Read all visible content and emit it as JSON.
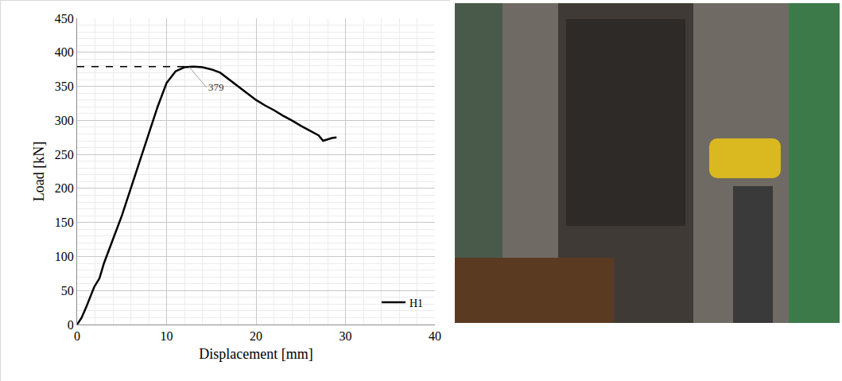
{
  "chart_data": {
    "type": "line",
    "x_label": "Displacement [mm]",
    "y_label": "Load [kN]",
    "xlim": [
      0,
      40
    ],
    "xticks": [
      0,
      10,
      20,
      30,
      40
    ],
    "ylim": [
      0,
      450
    ],
    "yticks": [
      0,
      50,
      100,
      150,
      200,
      250,
      300,
      350,
      400,
      450
    ],
    "grid": true,
    "legend": "lower right",
    "series": [
      {
        "name": "H1",
        "color": "#000000",
        "line_style": "solid",
        "x": [
          0,
          0.5,
          1,
          1.9,
          2.5,
          3,
          4,
          5,
          6,
          7,
          8,
          9,
          10,
          11,
          12,
          13,
          14,
          15,
          16,
          17,
          18,
          19,
          20,
          21,
          22,
          23,
          24,
          25,
          26,
          27,
          27.5,
          28,
          28.5,
          29
        ],
        "values": [
          0,
          10,
          25,
          55,
          68,
          90,
          125,
          160,
          200,
          240,
          280,
          320,
          355,
          372,
          378,
          379,
          378,
          375,
          370,
          360,
          350,
          340,
          330,
          322,
          315,
          307,
          300,
          292,
          285,
          278,
          270,
          272,
          274,
          275
        ]
      }
    ],
    "annotations": [
      {
        "text": "379",
        "x": 12.5,
        "y": 379
      }
    ]
  }
}
